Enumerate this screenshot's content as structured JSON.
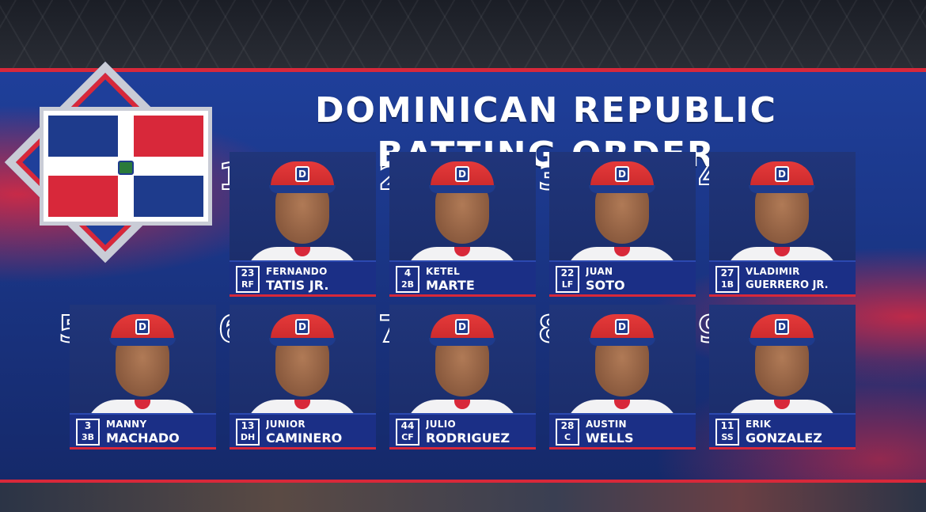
{
  "title": "DOMINICAN REPUBLIC BATTING ORDER",
  "colors": {
    "accent_red": "#d8283a",
    "panel_blue": "#1f3f9a",
    "flag_blue": "#1e3b8c"
  },
  "cap_logo": "D",
  "players": [
    {
      "order": "1",
      "number": "23",
      "position": "RF",
      "first": "FERNANDO",
      "last": "TATIS JR."
    },
    {
      "order": "2",
      "number": "4",
      "position": "2B",
      "first": "KETEL",
      "last": "MARTE"
    },
    {
      "order": "3",
      "number": "22",
      "position": "LF",
      "first": "JUAN",
      "last": "SOTO"
    },
    {
      "order": "4",
      "number": "27",
      "position": "1B",
      "first": "VLADIMIR",
      "last": "GUERRERO JR."
    },
    {
      "order": "5",
      "number": "3",
      "position": "3B",
      "first": "MANNY",
      "last": "MACHADO"
    },
    {
      "order": "6",
      "number": "13",
      "position": "DH",
      "first": "JUNIOR",
      "last": "CAMINERO"
    },
    {
      "order": "7",
      "number": "44",
      "position": "CF",
      "first": "JULIO",
      "last": "RODRIGUEZ"
    },
    {
      "order": "8",
      "number": "28",
      "position": "C",
      "first": "AUSTIN",
      "last": "WELLS"
    },
    {
      "order": "9",
      "number": "11",
      "position": "SS",
      "first": "ERIK",
      "last": "GONZALEZ"
    }
  ]
}
